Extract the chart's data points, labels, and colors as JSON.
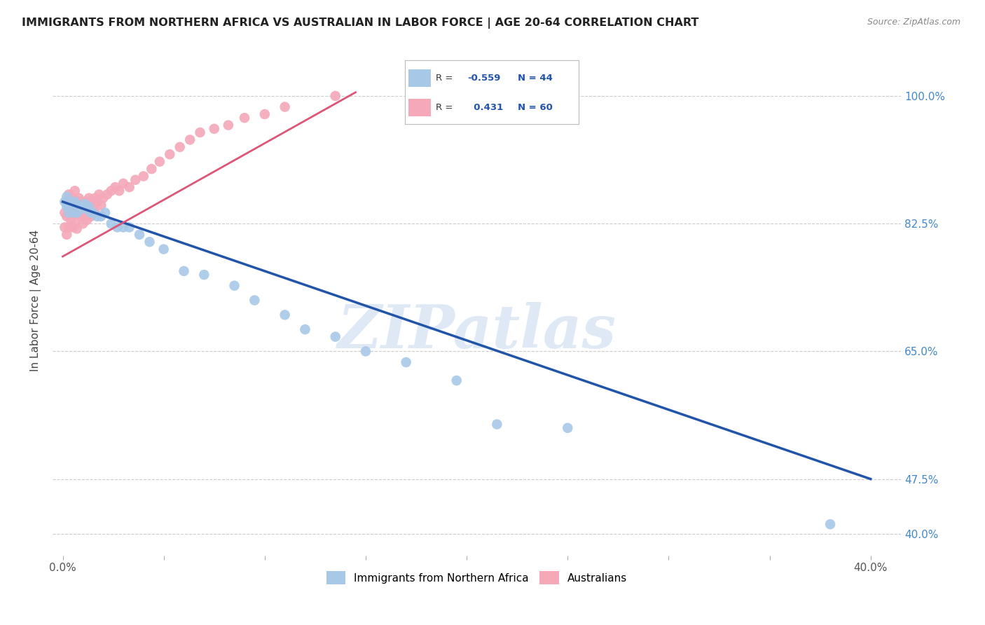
{
  "title": "IMMIGRANTS FROM NORTHERN AFRICA VS AUSTRALIAN IN LABOR FORCE | AGE 20-64 CORRELATION CHART",
  "source": "Source: ZipAtlas.com",
  "ylabel": "In Labor Force | Age 20-64",
  "blue_R": "-0.559",
  "blue_N": "44",
  "pink_R": "0.431",
  "pink_N": "60",
  "blue_color": "#A8C8E8",
  "pink_color": "#F4A8B8",
  "blue_line_color": "#2255AA",
  "pink_line_color": "#DD5577",
  "watermark": "ZIPatlas",
  "xlim": [
    -0.005,
    0.415
  ],
  "ylim": [
    0.37,
    1.07
  ],
  "ytick_positions": [
    0.4,
    0.475,
    0.65,
    0.825,
    1.0
  ],
  "ytick_labels": [
    "40.0%",
    "47.5%",
    "65.0%",
    "82.5%",
    "100.0%"
  ],
  "xtick_positions": [
    0.0,
    0.05,
    0.1,
    0.15,
    0.2,
    0.25,
    0.3,
    0.35,
    0.4
  ],
  "xtick_labels": [
    "0.0%",
    "",
    "",
    "",
    "",
    "",
    "",
    "",
    "40.0%"
  ],
  "blue_x": [
    0.001,
    0.002,
    0.002,
    0.003,
    0.003,
    0.004,
    0.004,
    0.005,
    0.005,
    0.006,
    0.006,
    0.007,
    0.007,
    0.008,
    0.009,
    0.01,
    0.011,
    0.012,
    0.013,
    0.014,
    0.015,
    0.017,
    0.019,
    0.021,
    0.024,
    0.027,
    0.03,
    0.033,
    0.038,
    0.043,
    0.05,
    0.06,
    0.07,
    0.085,
    0.095,
    0.11,
    0.12,
    0.135,
    0.15,
    0.17,
    0.195,
    0.215,
    0.25,
    0.38
  ],
  "blue_y": [
    0.855,
    0.848,
    0.862,
    0.85,
    0.84,
    0.855,
    0.845,
    0.852,
    0.848,
    0.84,
    0.855,
    0.848,
    0.84,
    0.85,
    0.845,
    0.848,
    0.852,
    0.845,
    0.848,
    0.84,
    0.84,
    0.835,
    0.835,
    0.84,
    0.825,
    0.82,
    0.82,
    0.82,
    0.81,
    0.8,
    0.79,
    0.76,
    0.755,
    0.74,
    0.72,
    0.7,
    0.68,
    0.67,
    0.65,
    0.635,
    0.61,
    0.55,
    0.545,
    0.413
  ],
  "pink_x": [
    0.001,
    0.001,
    0.002,
    0.002,
    0.002,
    0.003,
    0.003,
    0.003,
    0.004,
    0.004,
    0.005,
    0.005,
    0.005,
    0.006,
    0.006,
    0.006,
    0.007,
    0.007,
    0.007,
    0.008,
    0.008,
    0.009,
    0.009,
    0.01,
    0.01,
    0.011,
    0.011,
    0.012,
    0.012,
    0.013,
    0.013,
    0.014,
    0.014,
    0.015,
    0.016,
    0.016,
    0.017,
    0.018,
    0.019,
    0.02,
    0.022,
    0.024,
    0.026,
    0.028,
    0.03,
    0.033,
    0.036,
    0.04,
    0.044,
    0.048,
    0.053,
    0.058,
    0.063,
    0.068,
    0.075,
    0.082,
    0.09,
    0.1,
    0.11,
    0.135
  ],
  "pink_y": [
    0.84,
    0.82,
    0.855,
    0.835,
    0.81,
    0.865,
    0.845,
    0.82,
    0.85,
    0.83,
    0.86,
    0.84,
    0.82,
    0.87,
    0.85,
    0.825,
    0.855,
    0.838,
    0.818,
    0.86,
    0.84,
    0.855,
    0.835,
    0.845,
    0.825,
    0.855,
    0.835,
    0.85,
    0.83,
    0.86,
    0.84,
    0.855,
    0.835,
    0.845,
    0.86,
    0.84,
    0.855,
    0.865,
    0.85,
    0.86,
    0.865,
    0.87,
    0.875,
    0.87,
    0.88,
    0.875,
    0.885,
    0.89,
    0.9,
    0.91,
    0.92,
    0.93,
    0.94,
    0.95,
    0.955,
    0.96,
    0.97,
    0.975,
    0.985,
    1.0
  ]
}
